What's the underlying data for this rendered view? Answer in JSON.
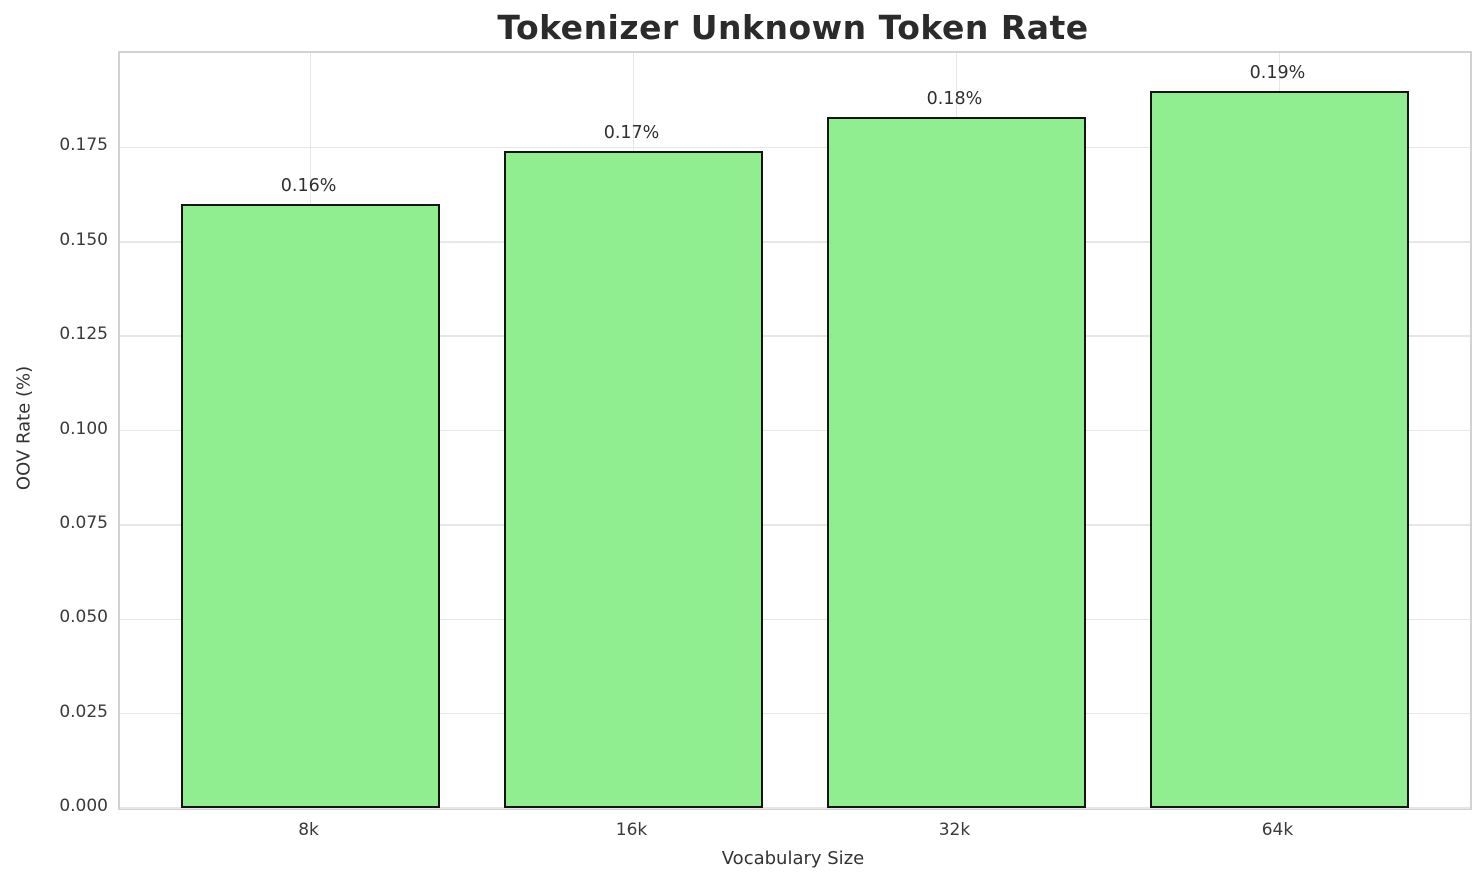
{
  "chart_data": {
    "type": "bar",
    "title": "Tokenizer Unknown Token Rate",
    "xlabel": "Vocabulary Size",
    "ylabel": "OOV Rate (%)",
    "categories": [
      "8k",
      "16k",
      "32k",
      "64k"
    ],
    "values": [
      0.16,
      0.174,
      0.183,
      0.19
    ],
    "bar_labels": [
      "0.16%",
      "0.17%",
      "0.18%",
      "0.19%"
    ],
    "ylim": [
      0,
      0.2
    ],
    "ytick_labels": [
      "0.000",
      "0.025",
      "0.050",
      "0.075",
      "0.100",
      "0.125",
      "0.150",
      "0.175"
    ],
    "grid": "on",
    "legend": "none",
    "colors": {
      "bar_fill": "#90EE90",
      "bar_edge": "#141414",
      "grid": "#e7e7e7",
      "spine": "#d2d2d2",
      "title_text": "#2b2b2b",
      "tick_text": "#3a3a3a",
      "axis_label_text": "#333333"
    }
  }
}
